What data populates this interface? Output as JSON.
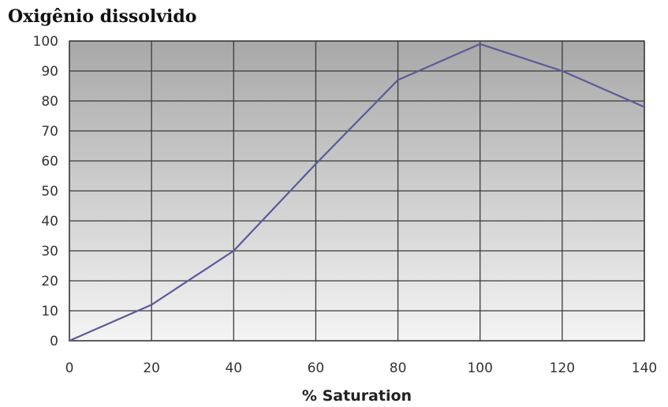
{
  "chart_data": {
    "type": "line",
    "title": "Oxigênio dissolvido",
    "xlabel": "% Saturation",
    "ylabel": "",
    "x": [
      0,
      20,
      40,
      60,
      80,
      100,
      120,
      140
    ],
    "series": [
      {
        "values": [
          0,
          12,
          30,
          59,
          87,
          99,
          90,
          78
        ]
      }
    ],
    "xlim": [
      0,
      140
    ],
    "ylim": [
      0,
      100
    ],
    "x_ticks": [
      0,
      20,
      40,
      60,
      80,
      100,
      120,
      140
    ],
    "y_ticks": [
      0,
      10,
      20,
      30,
      40,
      50,
      60,
      70,
      80,
      90,
      100
    ],
    "grid": true,
    "legend": "none",
    "colors": {
      "line": "#5a5a9a",
      "grid": "#3a3a3a",
      "plot_bg_top": "#a8a8a8",
      "plot_bg_bottom": "#f4f4f4"
    }
  }
}
